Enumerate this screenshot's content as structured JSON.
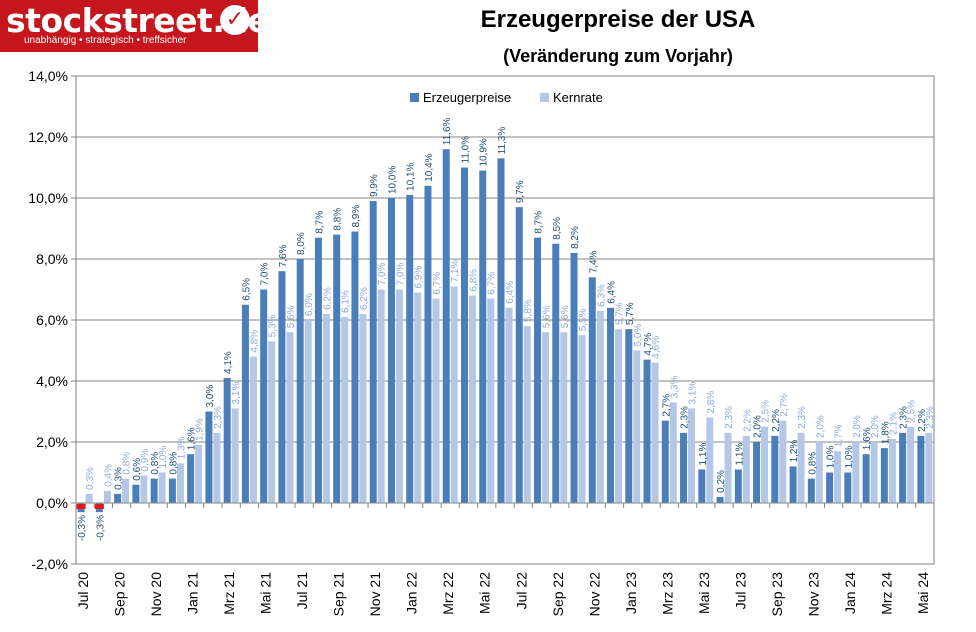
{
  "logo": {
    "brand": "stockstreet.de",
    "tagline": "unabhängig • strategisch • treffsicher",
    "icon": "check-icon"
  },
  "chart_data": {
    "type": "bar",
    "title": "Erzeugerpreise der USA",
    "subtitle": "(Veränderung zum Vorjahr)",
    "ylim": [
      -2,
      14
    ],
    "yticks": [
      "-2,0%",
      "0,0%",
      "2,0%",
      "4,0%",
      "6,0%",
      "8,0%",
      "10,0%",
      "12,0%",
      "14,0%"
    ],
    "grid": true,
    "legend": "top-center",
    "colors": {
      "erzeugerpreise": "#4a7ebb",
      "kernrate": "#b4c7e7",
      "negative_highlight": "#e8131b",
      "label_main": "#1f4e79",
      "label_core": "#8eaadb"
    },
    "x_labels": [
      "Jul 20",
      "Sep 20",
      "Nov 20",
      "Jan 21",
      "Mrz 21",
      "Mai 21",
      "Jul 21",
      "Sep 21",
      "Nov 21",
      "Jan 22",
      "Mrz 22",
      "Mai 22",
      "Jul 22",
      "Sep 22",
      "Nov 22",
      "Jan 23",
      "Mrz 23",
      "Mai 23",
      "Jul 23",
      "Sep 23",
      "Nov 23",
      "Jan 24",
      "Mrz 24",
      "Mai 24"
    ],
    "series": [
      {
        "name": "Erzeugerpreise",
        "values": [
          -0.3,
          -0.3,
          0.3,
          0.6,
          0.8,
          0.8,
          1.6,
          3.0,
          4.1,
          6.5,
          7.0,
          7.6,
          8.0,
          8.7,
          8.8,
          8.9,
          9.9,
          10.0,
          10.1,
          10.4,
          11.6,
          11.0,
          10.9,
          11.3,
          9.7,
          8.7,
          8.5,
          8.2,
          7.4,
          6.4,
          5.7,
          4.7,
          2.7,
          2.3,
          1.1,
          0.2,
          1.1,
          2.0,
          2.2,
          1.2,
          0.8,
          1.0,
          1.0,
          1.6,
          1.8,
          2.3,
          2.2
        ],
        "labels": [
          "-0,3%",
          "-0,3%",
          "0,3%",
          "0,6%",
          "0,8%",
          "0,8%",
          "1,6%",
          "3,0%",
          "4,1%",
          "6,5%",
          "7,0%",
          "7,6%",
          "8,0%",
          "8,7%",
          "8,8%",
          "8,9%",
          "9,9%",
          "10,0%",
          "10,1%",
          "10,4%",
          "11,6%",
          "11,0%",
          "10,9%",
          "11,3%",
          "9,7%",
          "8,7%",
          "8,5%",
          "8,2%",
          "7,4%",
          "6,4%",
          "5,7%",
          "4,7%",
          "2,7%",
          "2,3%",
          "1,1%",
          "0,2%",
          "1,1%",
          "2,0%",
          "2,2%",
          "1,2%",
          "0,8%",
          "1,0%",
          "1,0%",
          "1,6%",
          "1,8%",
          "2,3%",
          "2,2%"
        ]
      },
      {
        "name": "Kernrate",
        "values": [
          0.3,
          0.4,
          0.8,
          0.9,
          1.0,
          1.3,
          1.9,
          2.3,
          3.1,
          4.8,
          5.3,
          5.6,
          6.0,
          6.2,
          6.1,
          6.2,
          7.0,
          7.0,
          6.9,
          6.7,
          7.1,
          6.8,
          6.7,
          6.4,
          5.8,
          5.6,
          5.6,
          5.5,
          6.3,
          5.7,
          5.0,
          4.6,
          3.3,
          3.1,
          2.8,
          2.3,
          2.2,
          2.5,
          2.7,
          2.3,
          2.0,
          1.7,
          2.0,
          2.0,
          2.1,
          2.5,
          2.3
        ],
        "labels": [
          "0,3%",
          "0,4%",
          "0,8%",
          "0,9%",
          "1,0%",
          "1,3%",
          "1,9%",
          "2,3%",
          "3,1%",
          "4,8%",
          "5,3%",
          "5,6%",
          "6,0%",
          "6,2%",
          "6,1%",
          "6,2%",
          "7,0%",
          "7,0%",
          "6,9%",
          "6,7%",
          "7,1%",
          "6,8%",
          "6,7%",
          "6,4%",
          "5,8%",
          "5,6%",
          "5,6%",
          "5,5%",
          "6,3%",
          "5,7%",
          "5,0%",
          "4,6%",
          "3,3%",
          "3,1%",
          "2,8%",
          "2,3%",
          "2,2%",
          "2,5%",
          "2,7%",
          "2,3%",
          "2,0%",
          "1,7%",
          "2,0%",
          "2,0%",
          "2,1%",
          "2,5%",
          "2,3%"
        ]
      }
    ]
  }
}
